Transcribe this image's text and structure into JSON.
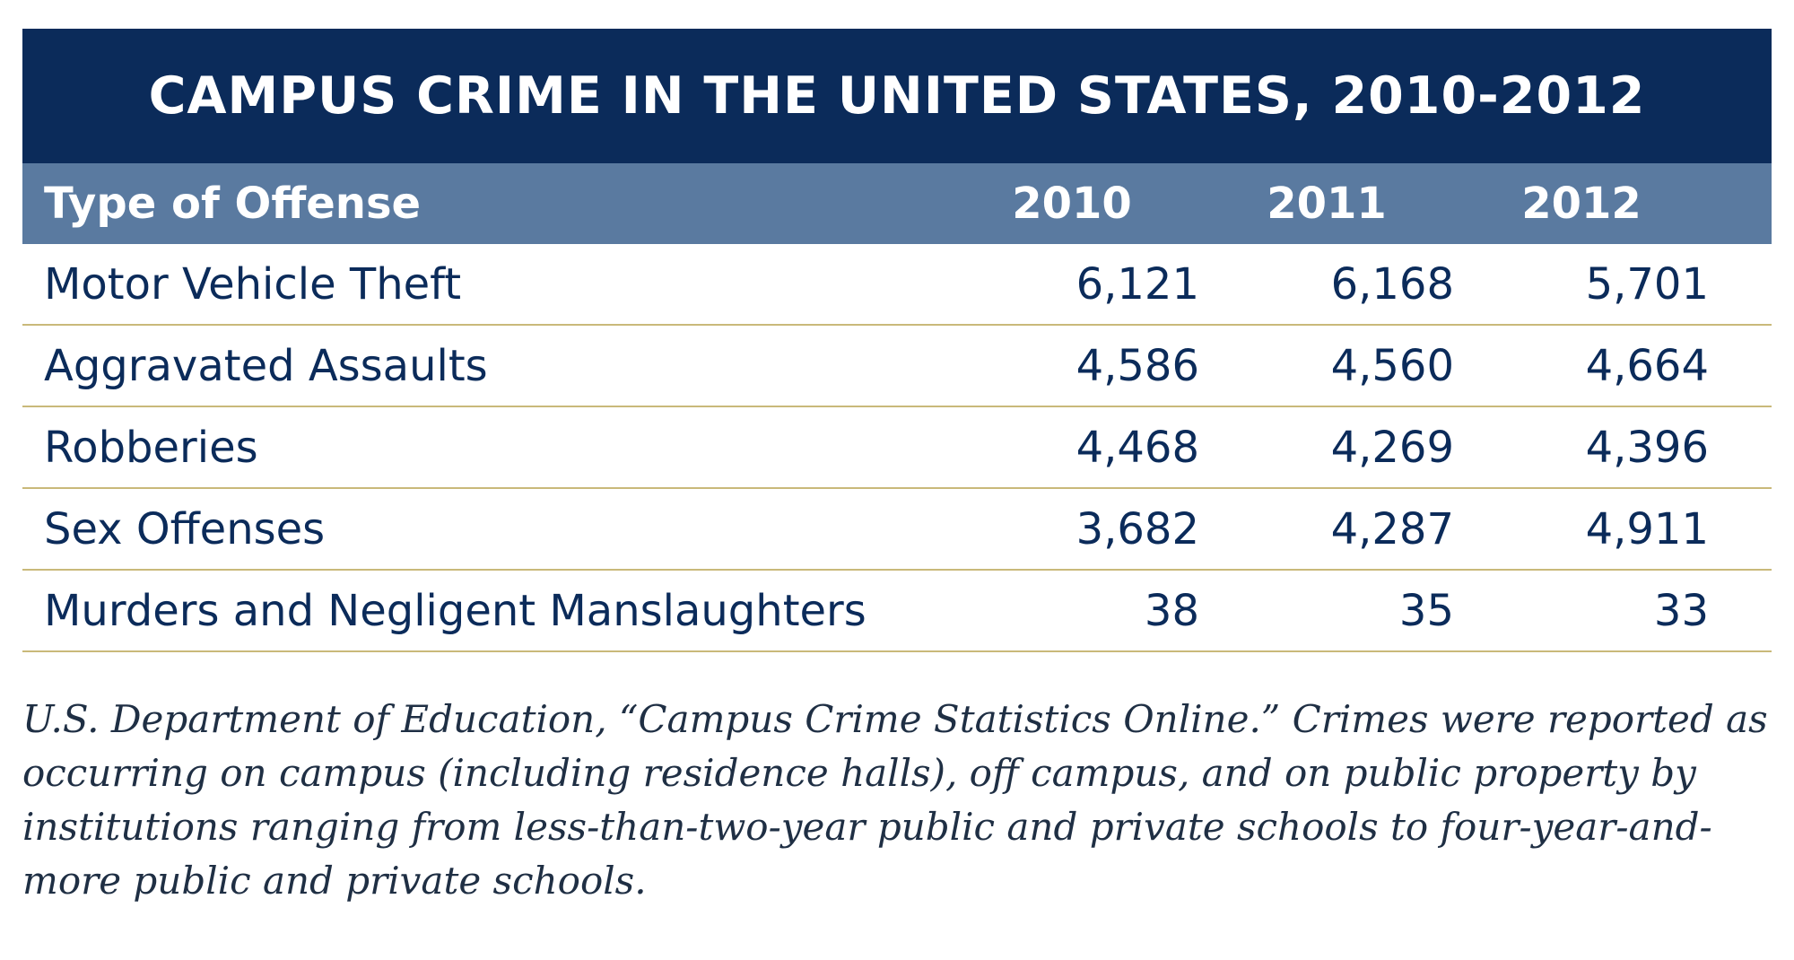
{
  "chart_data": {
    "type": "table",
    "title": "CAMPUS CRIME IN THE UNITED STATES, 2010-2012",
    "columns": [
      "Type of Offense",
      "2010",
      "2011",
      "2012"
    ],
    "rows": [
      {
        "label": "Motor Vehicle Theft",
        "values": [
          "6,121",
          "6,168",
          "5,701"
        ]
      },
      {
        "label": "Aggravated Assaults",
        "values": [
          "4,586",
          "4,560",
          "4,664"
        ]
      },
      {
        "label": "Robberies",
        "values": [
          "4,468",
          "4,269",
          "4,396"
        ]
      },
      {
        "label": "Sex Offenses",
        "values": [
          "3,682",
          "4,287",
          "4,911"
        ]
      },
      {
        "label": "Murders and Negligent Manslaughters",
        "values": [
          "38",
          "35",
          "33"
        ]
      }
    ]
  },
  "source_note": "U.S. Department of Education, “Campus Crime Statistics Online.” Crimes were reported as occurring on campus (including residence halls), off campus, and on public property by institutions ranging from less-than-two-year public and private schools to four-year-and-more public and private schools.",
  "colors": {
    "title_bg": "#0b2b5a",
    "header_bg": "#5a7aa0",
    "row_rule": "#c9b97a",
    "text": "#0b2b5a"
  }
}
